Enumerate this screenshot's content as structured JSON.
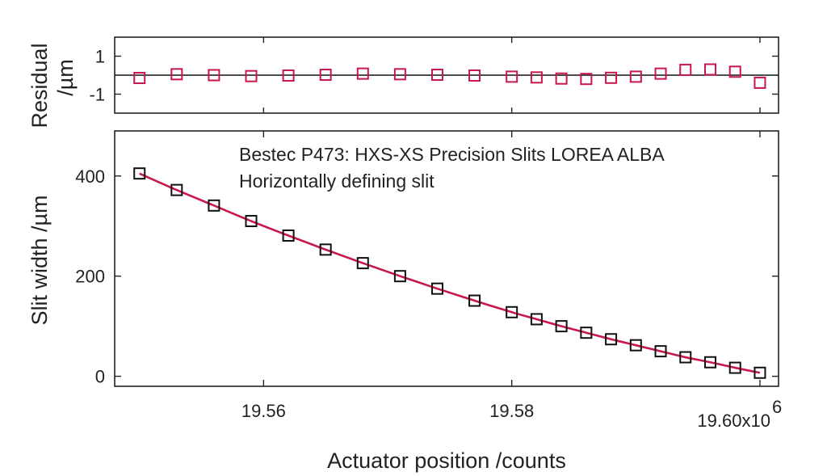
{
  "chart_data": [
    {
      "type": "scatter",
      "panel": "residual",
      "ylabel_line1": "Residual",
      "ylabel_line2": "/µm",
      "ylim": [
        -2,
        2
      ],
      "yticks": [
        1,
        -1
      ],
      "ytick_labels": [
        "1",
        "-1"
      ],
      "zero_line": true,
      "marker_color": "#c8174a",
      "x": [
        19.55,
        19.553,
        19.556,
        19.559,
        19.562,
        19.565,
        19.568,
        19.571,
        19.574,
        19.577,
        19.58,
        19.582,
        19.584,
        19.586,
        19.588,
        19.59,
        19.592,
        19.594,
        19.596,
        19.598,
        19.6
      ],
      "values": [
        -0.15,
        0.05,
        0.0,
        -0.05,
        -0.02,
        0.02,
        0.08,
        0.05,
        0.02,
        -0.02,
        -0.08,
        -0.12,
        -0.18,
        -0.2,
        -0.14,
        -0.08,
        0.08,
        0.28,
        0.3,
        0.18,
        -0.4
      ]
    },
    {
      "type": "scatter",
      "panel": "main",
      "annotation_line1": "Bestec P473: HXS-XS Precision Slits LOREA ALBA",
      "annotation_line2": "Horizontally defining slit",
      "xlabel": "Actuator position /counts",
      "ylabel": "Slit width /µm",
      "xlim": [
        19.548,
        19.6015
      ],
      "ylim": [
        -20,
        490
      ],
      "xticks": [
        19.56,
        19.58,
        19.6
      ],
      "xtick_labels": [
        "19.56",
        "19.58",
        "19.60x10"
      ],
      "x_exponent": "6",
      "yticks": [
        0,
        200,
        400
      ],
      "ytick_labels": [
        "0",
        "200",
        "400"
      ],
      "marker_color": "#111111",
      "fit_color": "#c8174a",
      "x": [
        19.55,
        19.553,
        19.556,
        19.559,
        19.562,
        19.565,
        19.568,
        19.571,
        19.574,
        19.577,
        19.58,
        19.582,
        19.584,
        19.586,
        19.588,
        19.59,
        19.592,
        19.594,
        19.596,
        19.598,
        19.6
      ],
      "values": [
        405,
        372,
        341,
        310,
        281,
        253,
        226,
        200,
        175,
        151,
        128,
        114,
        100,
        87,
        74,
        62,
        50,
        38,
        28,
        17,
        7
      ]
    }
  ]
}
